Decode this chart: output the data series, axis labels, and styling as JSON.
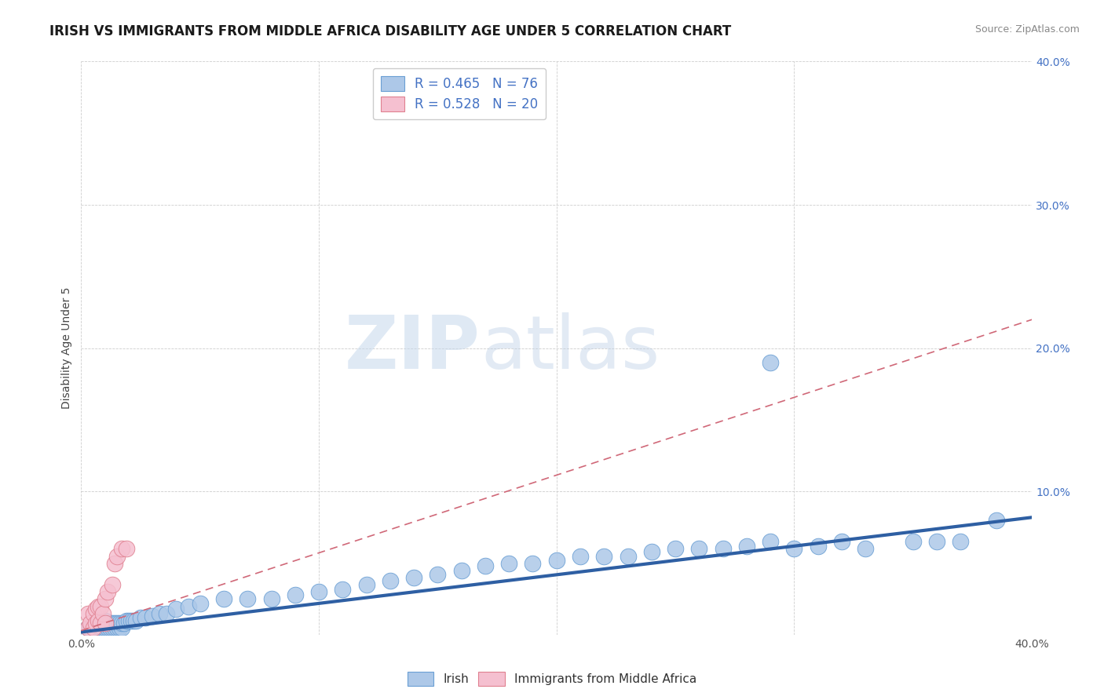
{
  "title": "IRISH VS IMMIGRANTS FROM MIDDLE AFRICA DISABILITY AGE UNDER 5 CORRELATION CHART",
  "source": "Source: ZipAtlas.com",
  "ylabel": "Disability Age Under 5",
  "xlim": [
    0.0,
    0.4
  ],
  "ylim": [
    0.0,
    0.4
  ],
  "xticks": [
    0.0,
    0.1,
    0.2,
    0.3,
    0.4
  ],
  "yticks": [
    0.0,
    0.1,
    0.2,
    0.3,
    0.4
  ],
  "xticklabels": [
    "0.0%",
    "",
    "",
    "",
    "40.0%"
  ],
  "yticklabels": [
    "",
    "10.0%",
    "20.0%",
    "30.0%",
    "40.0%"
  ],
  "legend_R_blue": "R = 0.465",
  "legend_N_blue": "N = 76",
  "legend_R_pink": "R = 0.528",
  "legend_N_pink": "N = 20",
  "blue_color": "#adc8e8",
  "blue_edge_color": "#6a9fd4",
  "blue_line_color": "#2e5fa3",
  "pink_color": "#f5c0d0",
  "pink_edge_color": "#e08090",
  "pink_line_color": "#d06878",
  "watermark_zip": "ZIP",
  "watermark_atlas": "atlas",
  "background_color": "#ffffff",
  "grid_color": "#c8c8c8",
  "title_fontsize": 12,
  "axis_label_fontsize": 10,
  "tick_fontsize": 10,
  "legend_fontsize": 12,
  "blue_scatter_x": [
    0.003,
    0.004,
    0.005,
    0.005,
    0.006,
    0.006,
    0.007,
    0.007,
    0.008,
    0.008,
    0.009,
    0.009,
    0.01,
    0.01,
    0.01,
    0.011,
    0.011,
    0.012,
    0.012,
    0.013,
    0.013,
    0.014,
    0.014,
    0.015,
    0.015,
    0.016,
    0.016,
    0.017,
    0.017,
    0.018,
    0.019,
    0.02,
    0.021,
    0.022,
    0.023,
    0.025,
    0.027,
    0.03,
    0.033,
    0.036,
    0.04,
    0.045,
    0.05,
    0.06,
    0.07,
    0.08,
    0.09,
    0.1,
    0.11,
    0.12,
    0.13,
    0.14,
    0.15,
    0.16,
    0.17,
    0.18,
    0.19,
    0.2,
    0.21,
    0.22,
    0.23,
    0.24,
    0.25,
    0.26,
    0.27,
    0.28,
    0.29,
    0.3,
    0.31,
    0.32,
    0.33,
    0.35,
    0.36,
    0.37,
    0.385,
    0.29
  ],
  "blue_scatter_y": [
    0.005,
    0.005,
    0.005,
    0.007,
    0.005,
    0.007,
    0.005,
    0.008,
    0.005,
    0.008,
    0.005,
    0.008,
    0.005,
    0.007,
    0.01,
    0.005,
    0.008,
    0.005,
    0.008,
    0.005,
    0.008,
    0.005,
    0.008,
    0.005,
    0.008,
    0.005,
    0.008,
    0.005,
    0.008,
    0.008,
    0.01,
    0.01,
    0.01,
    0.01,
    0.01,
    0.012,
    0.012,
    0.013,
    0.015,
    0.015,
    0.018,
    0.02,
    0.022,
    0.025,
    0.025,
    0.025,
    0.028,
    0.03,
    0.032,
    0.035,
    0.038,
    0.04,
    0.042,
    0.045,
    0.048,
    0.05,
    0.05,
    0.052,
    0.055,
    0.055,
    0.055,
    0.058,
    0.06,
    0.06,
    0.06,
    0.062,
    0.065,
    0.06,
    0.062,
    0.065,
    0.06,
    0.065,
    0.065,
    0.065,
    0.08,
    0.19
  ],
  "pink_scatter_x": [
    0.003,
    0.003,
    0.004,
    0.005,
    0.005,
    0.006,
    0.006,
    0.007,
    0.007,
    0.008,
    0.008,
    0.009,
    0.01,
    0.01,
    0.011,
    0.013,
    0.014,
    0.015,
    0.017,
    0.019
  ],
  "pink_scatter_y": [
    0.005,
    0.015,
    0.008,
    0.005,
    0.015,
    0.008,
    0.018,
    0.01,
    0.02,
    0.008,
    0.02,
    0.015,
    0.008,
    0.025,
    0.03,
    0.035,
    0.05,
    0.055,
    0.06,
    0.06
  ],
  "blue_trend_x": [
    0.0,
    0.4
  ],
  "blue_trend_y": [
    0.002,
    0.082
  ],
  "pink_trend_x": [
    0.0,
    0.4
  ],
  "pink_trend_y": [
    0.003,
    0.22
  ]
}
